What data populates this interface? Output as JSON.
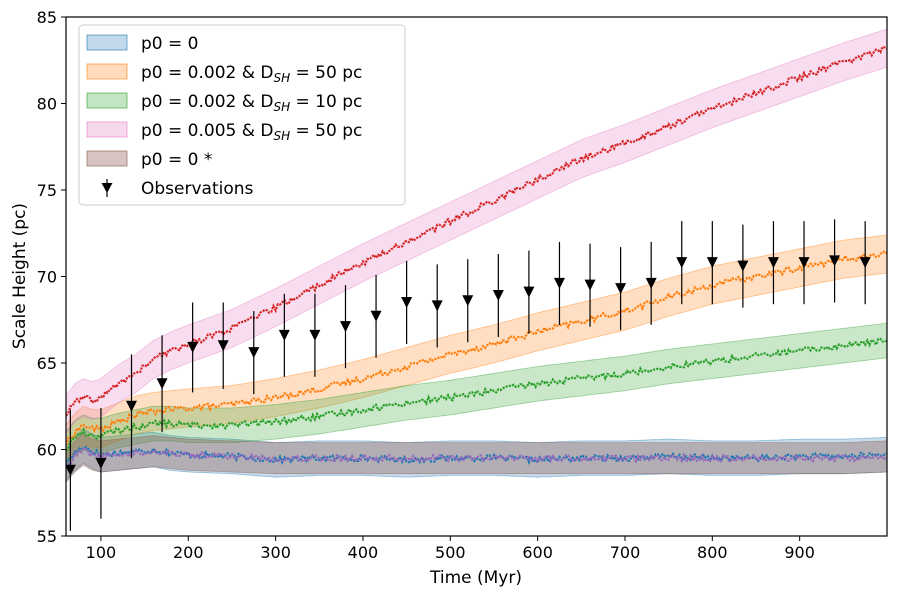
{
  "chart_data": {
    "type": "line",
    "title": "",
    "xlabel": "Time (Myr)",
    "ylabel": "Scale Height (pc)",
    "xlim": [
      60,
      1000
    ],
    "ylim": [
      55,
      85
    ],
    "xticks": [
      100,
      200,
      300,
      400,
      500,
      600,
      700,
      800,
      900
    ],
    "yticks": [
      55,
      60,
      65,
      70,
      75,
      80,
      85
    ],
    "legend_position": "top-left",
    "series": [
      {
        "name": "p0 = 0",
        "legend_main": "p0 = 0",
        "legend_sub": "",
        "legend_tail": "",
        "color": "#1f77b4",
        "band_color": "#1f77b4",
        "x": [
          60,
          70,
          80,
          90,
          100,
          120,
          140,
          160,
          180,
          200,
          250,
          300,
          350,
          400,
          450,
          500,
          550,
          600,
          650,
          700,
          750,
          800,
          850,
          900,
          950,
          1000
        ],
        "y": [
          59.2,
          59.8,
          60.2,
          59.9,
          59.7,
          59.8,
          59.9,
          60.0,
          59.8,
          59.7,
          59.6,
          59.4,
          59.5,
          59.5,
          59.4,
          59.5,
          59.5,
          59.4,
          59.5,
          59.5,
          59.6,
          59.5,
          59.5,
          59.6,
          59.6,
          59.7
        ],
        "band": 1.0
      },
      {
        "name": "p0 = 0.002 & D_SH = 50 pc",
        "legend_main": "p0 = 0.002 & D",
        "legend_sub": "SH",
        "legend_tail": " = 50 pc",
        "color": "#ff7f0e",
        "band_color": "#ff7f0e",
        "x": [
          60,
          70,
          80,
          90,
          100,
          120,
          140,
          160,
          180,
          200,
          250,
          300,
          350,
          400,
          450,
          500,
          550,
          600,
          650,
          700,
          750,
          800,
          850,
          900,
          950,
          1000
        ],
        "y": [
          60.3,
          61.0,
          61.4,
          61.2,
          61.2,
          61.6,
          62.0,
          62.2,
          62.3,
          62.4,
          62.6,
          63.0,
          63.5,
          64.1,
          64.8,
          65.5,
          66.1,
          66.8,
          67.4,
          68.0,
          68.8,
          69.5,
          70.0,
          70.5,
          71.0,
          71.3
        ],
        "band": 1.1
      },
      {
        "name": "p0 = 0.002 & D_SH = 10 pc",
        "legend_main": "p0 = 0.002 & D",
        "legend_sub": "SH",
        "legend_tail": " = 10 pc",
        "color": "#2ca02c",
        "band_color": "#2ca02c",
        "x": [
          60,
          70,
          80,
          90,
          100,
          120,
          140,
          160,
          180,
          200,
          250,
          300,
          350,
          400,
          450,
          500,
          550,
          600,
          650,
          700,
          750,
          800,
          850,
          900,
          950,
          1000
        ],
        "y": [
          60.0,
          60.7,
          61.0,
          60.8,
          60.8,
          61.1,
          61.3,
          61.5,
          61.5,
          61.4,
          61.4,
          61.6,
          61.9,
          62.3,
          62.7,
          63.0,
          63.4,
          63.8,
          64.1,
          64.4,
          64.8,
          65.1,
          65.4,
          65.7,
          66.0,
          66.3
        ],
        "band": 1.0
      },
      {
        "name": "p0 = 0.005 & D_SH = 50 pc",
        "legend_main": "p0 = 0.005 & D",
        "legend_sub": "SH",
        "legend_tail": " = 50 pc",
        "color": "#d62728",
        "band_color": "#e377c2",
        "x": [
          60,
          70,
          80,
          90,
          100,
          120,
          140,
          160,
          180,
          200,
          250,
          300,
          350,
          400,
          450,
          500,
          550,
          600,
          650,
          700,
          750,
          800,
          850,
          900,
          950,
          1000
        ],
        "y": [
          62.0,
          62.7,
          63.0,
          62.8,
          63.0,
          63.8,
          64.4,
          65.2,
          65.7,
          66.1,
          67.0,
          68.2,
          69.5,
          70.8,
          72.0,
          73.2,
          74.4,
          75.6,
          76.8,
          77.7,
          78.7,
          79.7,
          80.6,
          81.5,
          82.4,
          83.2
        ],
        "band": 1.1
      },
      {
        "name": "p0 = 0 *",
        "legend_main": "p0 = 0 *",
        "legend_sub": "",
        "legend_tail": "",
        "color": "#9467bd",
        "band_color": "#8c564b",
        "x": [
          60,
          70,
          80,
          90,
          100,
          120,
          140,
          160,
          180,
          200,
          250,
          300,
          350,
          400,
          450,
          500,
          550,
          600,
          650,
          700,
          750,
          800,
          850,
          900,
          950,
          1000
        ],
        "y": [
          59.0,
          59.6,
          60.0,
          59.7,
          59.6,
          59.7,
          59.8,
          59.9,
          59.8,
          59.7,
          59.6,
          59.5,
          59.5,
          59.5,
          59.5,
          59.5,
          59.5,
          59.5,
          59.5,
          59.5,
          59.5,
          59.5,
          59.5,
          59.5,
          59.5,
          59.6
        ],
        "band": 0.9
      }
    ],
    "observations": {
      "name": "Observations",
      "color": "#000000",
      "x": [
        65,
        100,
        135,
        170,
        205,
        240,
        275,
        310,
        345,
        380,
        415,
        450,
        485,
        520,
        555,
        590,
        625,
        660,
        695,
        730,
        765,
        800,
        835,
        870,
        905,
        940,
        975
      ],
      "y": [
        58.8,
        59.2,
        62.5,
        63.8,
        65.9,
        66.0,
        65.6,
        66.6,
        66.6,
        67.1,
        67.7,
        68.5,
        68.3,
        68.6,
        68.9,
        69.1,
        69.6,
        69.5,
        69.3,
        69.6,
        70.8,
        70.8,
        70.6,
        70.8,
        70.8,
        70.9,
        70.8
      ],
      "err": [
        3.5,
        3.2,
        3.0,
        2.8,
        2.6,
        2.5,
        2.4,
        2.4,
        2.4,
        2.4,
        2.4,
        2.4,
        2.4,
        2.4,
        2.4,
        2.4,
        2.4,
        2.4,
        2.4,
        2.4,
        2.4,
        2.4,
        2.4,
        2.4,
        2.4,
        2.4,
        2.4
      ]
    }
  }
}
